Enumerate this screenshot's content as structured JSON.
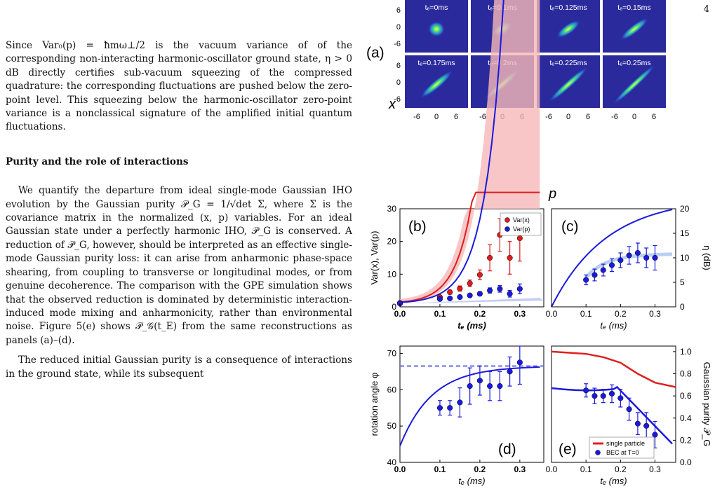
{
  "page_number": "4",
  "text": {
    "para1": "Since Var₀(p) = ħmω⊥/2 is the vacuum variance of of the corresponding non-interacting harmonic-oscillator ground state, η > 0 dB directly certifies sub-vacuum squeezing of the compressed quadrature: the corresponding fluctuations are pushed below the zero-point level. This squeezing below the harmonic-oscillator zero-point variance is a nonclassical signature of the amplified initial quantum fluctuations.",
    "heading": "Purity and the role of interactions",
    "para2": "We quantify the departure from ideal single-mode Gaussian IHO evolution by the Gaussian purity 𝒫_G = 1/√det Σ, where Σ is the covariance matrix in the normalized (x, p) variables. For an ideal Gaussian state under a perfectly harmonic IHO, 𝒫_G is conserved. A reduction of 𝒫_G, however, should be interpreted as an effective single-mode Gaussian purity loss: it can arise from anharmonic phase-space shearing, from coupling to transverse or longitudinal modes, or from genuine decoherence. The comparison with the GPE simulation shows that the observed reduction is dominated by deterministic interaction-induced mode mixing and anharmonicity, rather than environmental noise. Figure 5(e) shows 𝒫_𝒢(t_E) from the same reconstructions as panels (a)–(d).",
    "para3": "The reduced initial Gaussian purity is a consequence of interactions in the ground state, while its subsequent"
  },
  "figure": {
    "panel_a": {
      "label": "(a)",
      "times": [
        "tₑ=0ms",
        "tₑ=0.1ms",
        "tₑ=0.125ms",
        "tₑ=0.15ms",
        "tₑ=0.175ms",
        "tₑ=0.2ms",
        "tₑ=0.225ms",
        "tₑ=0.25ms"
      ],
      "ylabel": "x",
      "xlabel": "p",
      "yticks": [
        "6",
        "0",
        "-6"
      ],
      "xticks": [
        "-6",
        "0",
        "6"
      ]
    },
    "panel_labels": [
      "(b)",
      "(c)",
      "(d)",
      "(e)"
    ]
  },
  "chart_data": [
    {
      "panel": "(b)",
      "type": "scatter",
      "ylabel": "Var(x), Var(p)",
      "xlabel": "tₑ (ms)",
      "xlim": [
        0,
        0.36
      ],
      "ylim": [
        0,
        30
      ],
      "xticks": [
        "0.0",
        "0.1",
        "0.2",
        "0.3"
      ],
      "yticks": [
        "0",
        "10",
        "20",
        "30"
      ],
      "legend_position": "top-right",
      "series": [
        {
          "name": "Var(x)",
          "color": "#dd1c1c",
          "x": [
            0,
            0.1,
            0.125,
            0.15,
            0.175,
            0.2,
            0.225,
            0.25,
            0.275,
            0.3
          ],
          "y": [
            1.2,
            3.0,
            4.5,
            5.6,
            7.2,
            9.8,
            15,
            22,
            15,
            21
          ],
          "err": [
            0.3,
            0.4,
            0.6,
            0.8,
            1.0,
            1.5,
            4,
            5,
            5,
            7
          ]
        },
        {
          "name": "Var(p)",
          "color": "#1a1adc",
          "x": [
            0,
            0.1,
            0.125,
            0.15,
            0.175,
            0.2,
            0.225,
            0.25,
            0.275,
            0.3
          ],
          "y": [
            1.0,
            2.4,
            2.6,
            3.0,
            3.5,
            4.0,
            5.0,
            5.5,
            4.0,
            5.5
          ],
          "err": [
            0.2,
            0.3,
            0.3,
            0.4,
            0.5,
            0.6,
            0.8,
            1.0,
            1.0,
            1.5
          ]
        }
      ]
    },
    {
      "panel": "(c)",
      "type": "scatter",
      "ylabel": "η (dB)",
      "xlabel": "tₑ (ms)",
      "xlim": [
        0,
        0.36
      ],
      "ylim": [
        0,
        20
      ],
      "xticks": [
        "0.0",
        "0.1",
        "0.2",
        "0.3"
      ],
      "yticks": [
        "0",
        "5",
        "10",
        "15",
        "20"
      ],
      "series": [
        {
          "name": "",
          "color": "#1a1adc",
          "x": [
            0.1,
            0.125,
            0.15,
            0.175,
            0.2,
            0.225,
            0.25,
            0.275,
            0.3
          ],
          "y": [
            5.5,
            6.5,
            7.5,
            8.5,
            9.5,
            10.5,
            11,
            10,
            10
          ],
          "err": [
            1.0,
            1.2,
            1.2,
            1.3,
            1.5,
            1.8,
            2.0,
            2.0,
            2.5
          ]
        }
      ]
    },
    {
      "panel": "(d)",
      "type": "scatter",
      "ylabel": "rotation angle φ",
      "xlabel": "tₑ (ms)",
      "xlim": [
        0,
        0.36
      ],
      "ylim": [
        40,
        72
      ],
      "xticks": [
        "0.0",
        "0.1",
        "0.2",
        "0.3"
      ],
      "yticks": [
        "40",
        "50",
        "60",
        "70"
      ],
      "reference_line": 66.5,
      "series": [
        {
          "name": "",
          "color": "#1a1adc",
          "x": [
            0.1,
            0.125,
            0.15,
            0.175,
            0.2,
            0.225,
            0.25,
            0.275,
            0.3
          ],
          "y": [
            55,
            55,
            56.5,
            61,
            62.5,
            61,
            61,
            65,
            67.5
          ],
          "err": [
            2,
            2,
            4,
            5,
            4,
            4,
            4,
            4,
            6
          ]
        }
      ]
    },
    {
      "panel": "(e)",
      "type": "line",
      "ylabel": "Gaussian purity 𝒫_G",
      "xlabel": "tₑ (ms)",
      "xlim": [
        0,
        0.36
      ],
      "ylim": [
        0,
        1.05
      ],
      "xticks": [
        "0.0",
        "0.1",
        "0.2",
        "0.3"
      ],
      "yticks": [
        "0.0",
        "0.2",
        "0.4",
        "0.6",
        "0.8",
        "1.0"
      ],
      "legend_position": "bottom-center",
      "series": [
        {
          "name": "single particle",
          "color": "#e02020",
          "x": [
            0,
            0.05,
            0.1,
            0.15,
            0.2,
            0.25,
            0.3,
            0.36
          ],
          "y": [
            1.0,
            0.99,
            0.98,
            0.95,
            0.9,
            0.8,
            0.72,
            0.68
          ]
        },
        {
          "name": "BEC at T=0",
          "color": "#1a1adc",
          "x": [
            0.1,
            0.125,
            0.15,
            0.175,
            0.2,
            0.225,
            0.25,
            0.275,
            0.3
          ],
          "y": [
            0.65,
            0.6,
            0.6,
            0.62,
            0.58,
            0.48,
            0.35,
            0.33,
            0.25
          ],
          "err": [
            0.06,
            0.07,
            0.06,
            0.08,
            0.08,
            0.1,
            0.1,
            0.12,
            0.12
          ]
        }
      ]
    }
  ]
}
